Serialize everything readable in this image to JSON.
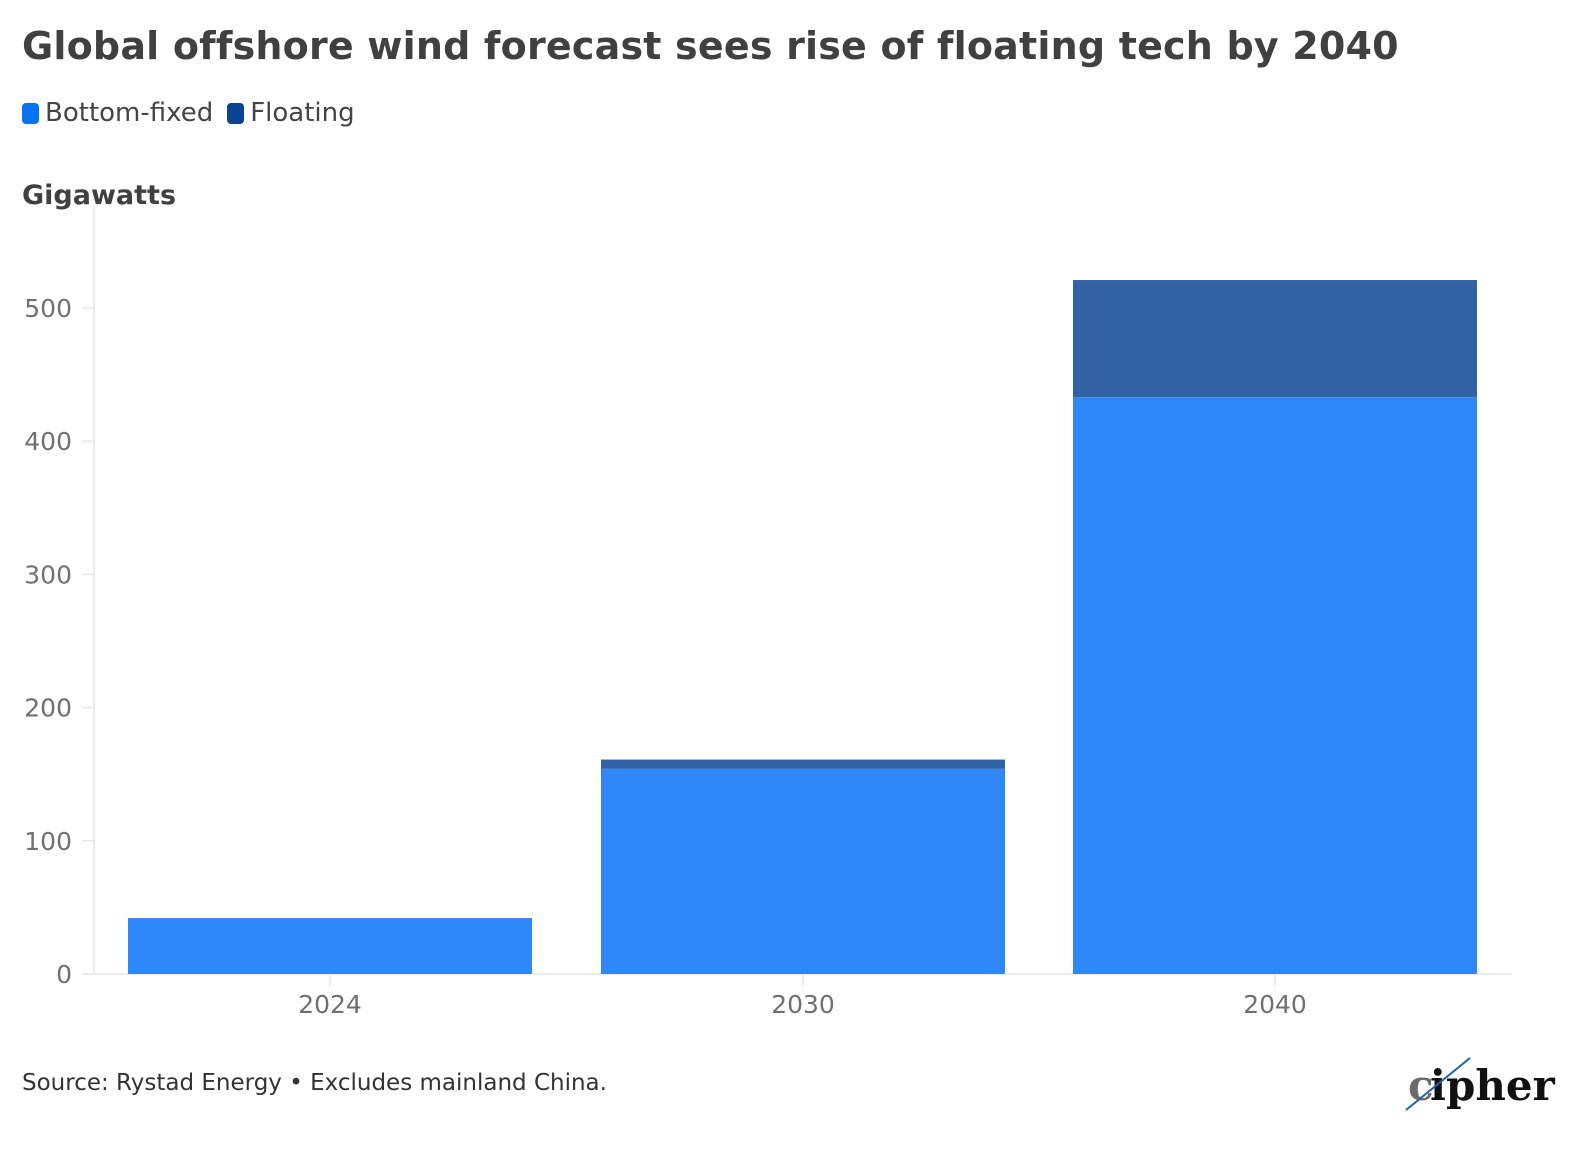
{
  "title": "Global offshore wind forecast sees rise of floating tech by 2040",
  "legend": [
    {
      "name": "Bottom-fixed",
      "color": "#0A73F2"
    },
    {
      "name": "Floating",
      "color": "#0B4394"
    }
  ],
  "y_axis_title": "Gigawatts",
  "source": "Source: Rystad Energy • Excludes mainland China.",
  "logo": {
    "text": "cipher",
    "icon": "cipher-logo-icon"
  },
  "chart_data": {
    "type": "bar",
    "stacked": true,
    "title": "Global offshore wind forecast sees rise of floating tech by 2040",
    "xlabel": "",
    "ylabel": "Gigawatts",
    "categories": [
      "2024",
      "2030",
      "2040"
    ],
    "series": [
      {
        "name": "Bottom-fixed",
        "color": "#3088F8",
        "values": [
          42,
          154,
          433
        ]
      },
      {
        "name": "Floating",
        "color": "#3162A3",
        "values": [
          0,
          7,
          88
        ]
      }
    ],
    "ylim": [
      0,
      550
    ],
    "yticks": [
      0,
      100,
      200,
      300,
      400,
      500
    ],
    "grid": false,
    "legend_position": "top-left"
  }
}
